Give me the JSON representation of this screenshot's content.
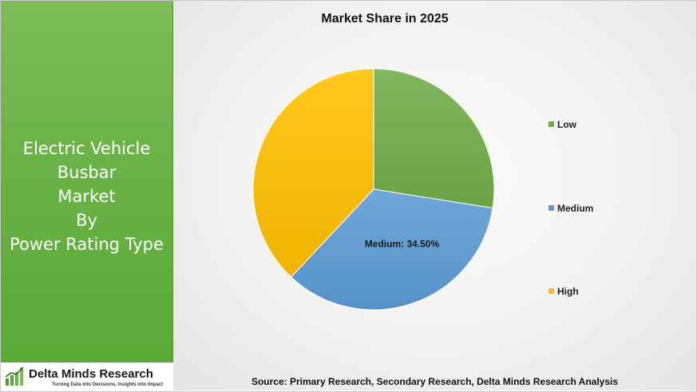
{
  "sidebar": {
    "title_lines": [
      "Electric Vehicle",
      "Busbar",
      "Market",
      "By",
      "Power Rating Type"
    ],
    "logo": {
      "name": "Delta Minds Research",
      "tagline": "Turning Data into Decisions, Insights into Impact"
    }
  },
  "source": "Source: Primary Research, Secondary Research, Delta Minds Research Analysis",
  "colors": {
    "sidebar_green": "#6ab346",
    "low": "#70ad47",
    "medium": "#5b9bd5",
    "high": "#ffc000"
  },
  "chart_data": {
    "type": "pie",
    "title": "Market Share in 2025",
    "categories": [
      "Low",
      "Medium",
      "High"
    ],
    "values": [
      27.5,
      34.5,
      38.0
    ],
    "colors": [
      "#70ad47",
      "#5b9bd5",
      "#ffc000"
    ],
    "data_labels": [
      {
        "category": "Medium",
        "text": "Medium: 34.50%"
      }
    ],
    "legend_position": "right"
  }
}
